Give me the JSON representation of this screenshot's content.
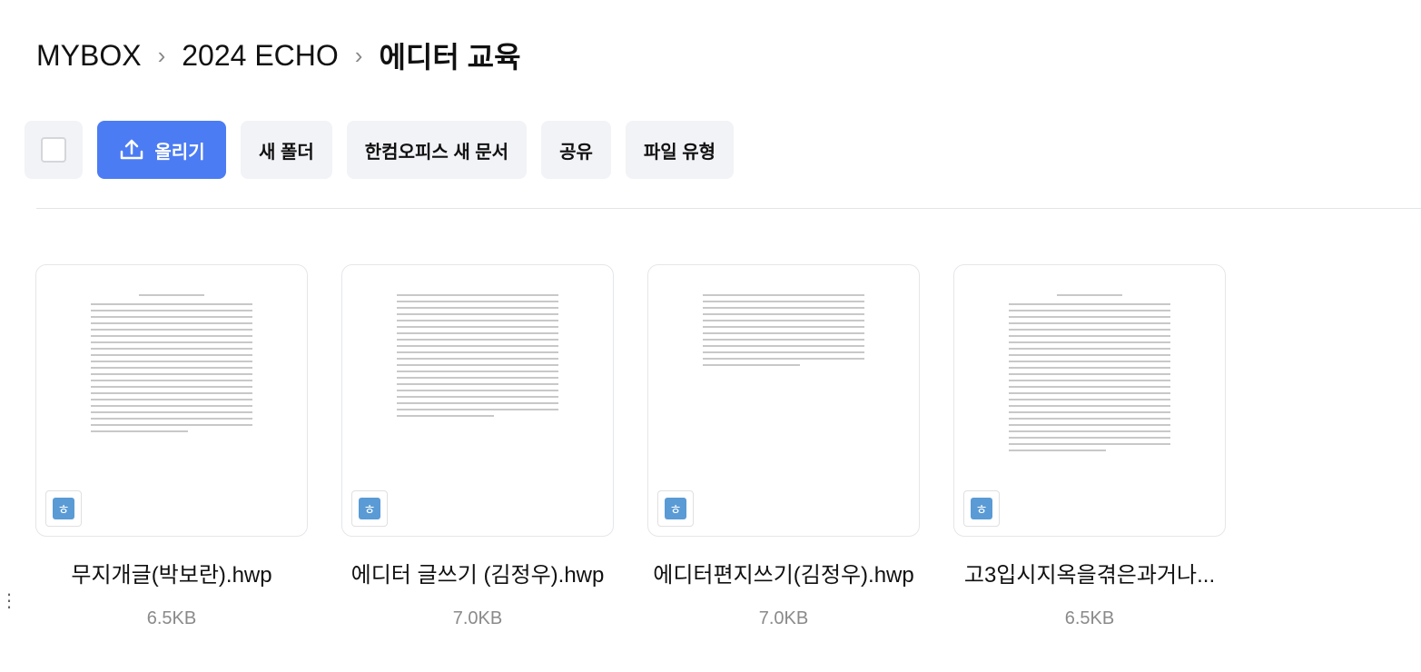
{
  "breadcrumb": [
    "MYBOX",
    "2024 ECHO",
    "에디터 교육"
  ],
  "toolbar": {
    "upload": "올리기",
    "new_folder": "새 폴더",
    "hancom_new": "한컴오피스 새 문서",
    "share": "공유",
    "file_type": "파일 유형"
  },
  "files": [
    {
      "name": "무지개글(박보란).hwp",
      "size": "6.5KB",
      "icon": "hwp-icon"
    },
    {
      "name": "에디터 글쓰기 (김정우).hwp",
      "size": "7.0KB",
      "icon": "hwp-icon"
    },
    {
      "name": "에디터편지쓰기(김정우).hwp",
      "size": "7.0KB",
      "icon": "hwp-icon"
    },
    {
      "name": "고3입시지옥을겪은과거나...",
      "size": "6.5KB",
      "icon": "hwp-icon"
    }
  ],
  "file_badge": "ㅎ",
  "colors": {
    "primary": "#4c7cf3",
    "hwp": "#5a9bd5"
  }
}
